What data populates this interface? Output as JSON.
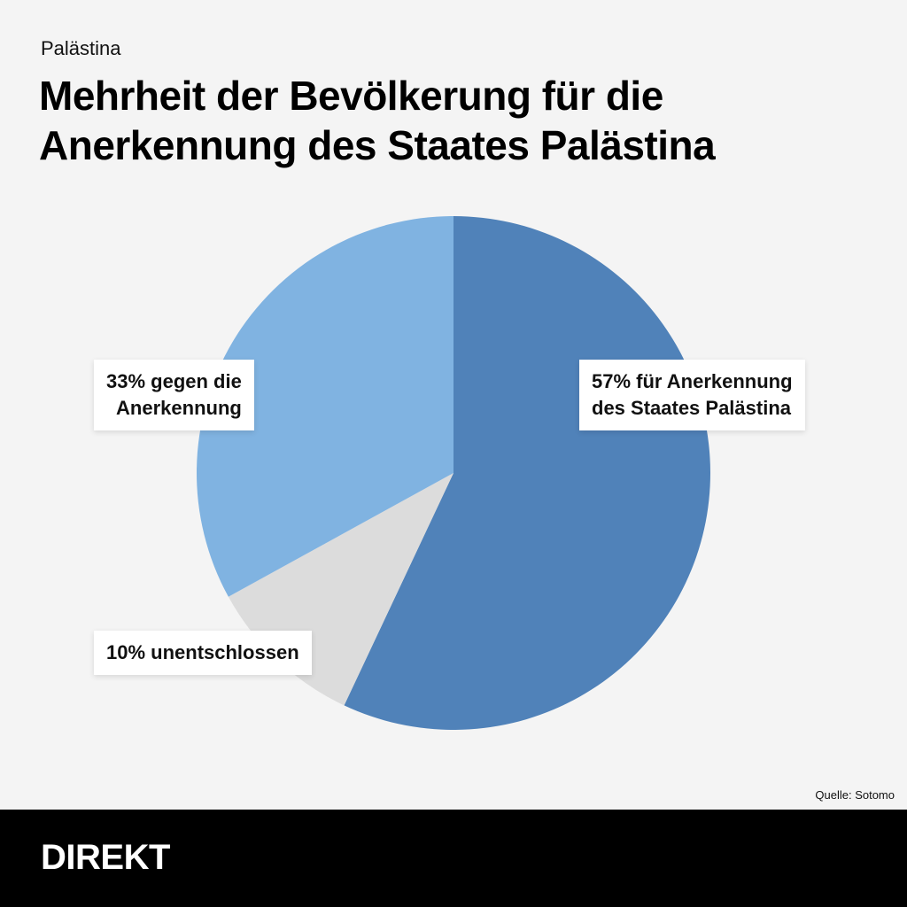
{
  "header": {
    "kicker": "Palästina",
    "title": "Mehrheit der Bevölkerung für die Anerkennung des Staates Palästina"
  },
  "chart_data": {
    "type": "pie",
    "slices": [
      {
        "label": "57% für Anerkennung des Staates Palästina",
        "value": 57,
        "color": "#5082b9"
      },
      {
        "label": "10% unentschlossen",
        "value": 10,
        "color": "#dcdcdc"
      },
      {
        "label": "33% gegen die Anerkennung",
        "value": 33,
        "color": "#80b3e1"
      }
    ],
    "labels": {
      "for_line1": "57% für Anerkennung",
      "for_line2": "des Staates Palästina",
      "against_line1": "33% gegen die",
      "against_line2": "Anerkennung",
      "undecided": "10% unentschlossen"
    }
  },
  "source": "Quelle: Sotomo",
  "footer": {
    "brand": "DIREKT"
  }
}
